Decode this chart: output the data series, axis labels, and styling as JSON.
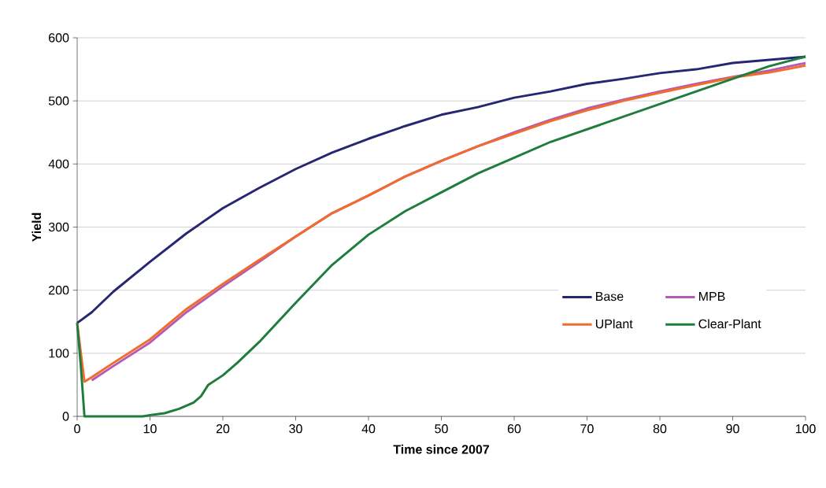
{
  "chart_data": {
    "type": "line",
    "xlabel": "Time since 2007",
    "ylabel": "Yield",
    "xlim": [
      0,
      100
    ],
    "ylim": [
      0,
      600
    ],
    "xticks": [
      0,
      10,
      20,
      30,
      40,
      50,
      60,
      70,
      80,
      90,
      100
    ],
    "yticks": [
      0,
      100,
      200,
      300,
      400,
      500,
      600
    ],
    "grid": "y",
    "legend": "right",
    "marker": "none",
    "line_style": "solid",
    "series": [
      {
        "name": "Base",
        "color": "#262673",
        "x": [
          0,
          2,
          5,
          10,
          15,
          20,
          25,
          30,
          35,
          40,
          45,
          50,
          55,
          60,
          65,
          70,
          75,
          80,
          85,
          90,
          95,
          100
        ],
        "values": [
          148,
          165,
          198,
          245,
          290,
          330,
          362,
          392,
          418,
          440,
          460,
          478,
          490,
          505,
          515,
          527,
          535,
          544,
          550,
          560,
          565,
          570
        ]
      },
      {
        "name": "MPB",
        "color": "#b35cb3",
        "x": [
          2,
          5,
          10,
          15,
          20,
          25,
          30,
          35,
          40,
          45,
          50,
          55,
          60,
          65,
          70,
          75,
          80,
          85,
          90,
          95,
          100
        ],
        "values": [
          57,
          80,
          117,
          165,
          206,
          245,
          285,
          322,
          350,
          380,
          405,
          428,
          450,
          470,
          488,
          502,
          515,
          527,
          538,
          548,
          560
        ]
      },
      {
        "name": "UPlant",
        "color": "#f26b2b",
        "x": [
          0,
          1,
          2,
          5,
          10,
          15,
          20,
          25,
          30,
          35,
          40,
          45,
          50,
          55,
          60,
          65,
          70,
          75,
          80,
          85,
          90,
          95,
          100
        ],
        "values": [
          148,
          55,
          62,
          85,
          122,
          170,
          210,
          248,
          285,
          322,
          350,
          380,
          405,
          428,
          448,
          468,
          485,
          500,
          513,
          525,
          537,
          545,
          556
        ]
      },
      {
        "name": "Clear-Plant",
        "color": "#1e7d3c",
        "x": [
          0,
          0.5,
          1,
          9,
          10,
          12,
          14,
          16,
          17,
          18,
          20,
          22,
          25,
          30,
          35,
          40,
          45,
          50,
          55,
          60,
          65,
          70,
          75,
          80,
          85,
          90,
          95,
          100
        ],
        "values": [
          148,
          80,
          0,
          0,
          2,
          5,
          12,
          22,
          32,
          50,
          65,
          85,
          118,
          180,
          240,
          288,
          325,
          355,
          385,
          410,
          435,
          455,
          475,
          495,
          515,
          535,
          555,
          570
        ]
      }
    ]
  }
}
